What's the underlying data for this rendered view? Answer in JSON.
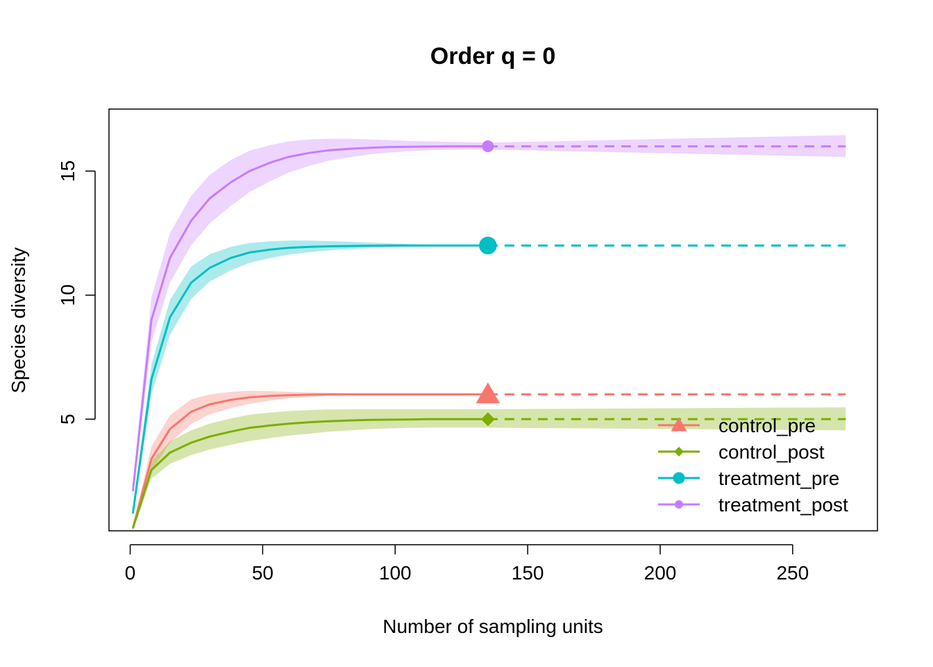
{
  "chart_data": {
    "type": "line",
    "title": "Order q = 0",
    "xlabel": "Number of sampling units",
    "ylabel": "Species diversity",
    "xlim": [
      -8,
      282
    ],
    "ylim": [
      0.5,
      17.5
    ],
    "xticks": [
      0,
      50,
      100,
      150,
      200,
      250
    ],
    "yticks": [
      5,
      10,
      15
    ],
    "grid": false,
    "legend_position": "bottom-right",
    "observed_x": 135,
    "extrapolation_end_x": 270,
    "series": [
      {
        "name": "control_pre",
        "color": "#F8766D",
        "band_color": "#F8766D",
        "marker": "triangle",
        "marker_size": "large",
        "legend_marker_size": "medium",
        "rarefaction": {
          "x": [
            1,
            8,
            15,
            23,
            30,
            38,
            45,
            53,
            60,
            68,
            75,
            83,
            90,
            98,
            105,
            113,
            120,
            128,
            135
          ],
          "y": [
            0.6,
            3.4,
            4.6,
            5.3,
            5.6,
            5.78,
            5.88,
            5.94,
            5.97,
            5.99,
            6.0,
            6.0,
            6.0,
            6.0,
            6.0,
            6.0,
            6.0,
            6.0,
            6.0
          ],
          "lower": [
            0.5,
            2.9,
            4.05,
            4.8,
            5.2,
            5.45,
            5.62,
            5.75,
            5.84,
            5.9,
            5.94,
            5.97,
            5.98,
            5.99,
            6.0,
            6.0,
            6.0,
            6.0,
            6.0
          ],
          "upper": [
            0.7,
            3.9,
            5.15,
            5.8,
            6.0,
            6.1,
            6.14,
            6.13,
            6.1,
            6.08,
            6.06,
            6.04,
            6.03,
            6.02,
            6.01,
            6.0,
            6.0,
            6.0,
            6.0
          ]
        },
        "extrapolation": {
          "x": [
            135,
            270
          ],
          "y": [
            6.0,
            6.0
          ],
          "lower": [
            6.0,
            6.0
          ],
          "upper": [
            6.0,
            6.0
          ]
        }
      },
      {
        "name": "control_post",
        "color": "#7CAE00",
        "band_color": "#7CAE00",
        "marker": "diamond",
        "marker_size": "medium",
        "legend_marker_size": "small",
        "rarefaction": {
          "x": [
            1,
            8,
            15,
            23,
            30,
            38,
            45,
            53,
            60,
            68,
            75,
            83,
            90,
            98,
            105,
            113,
            120,
            128,
            135
          ],
          "y": [
            0.6,
            2.95,
            3.65,
            4.05,
            4.3,
            4.5,
            4.65,
            4.75,
            4.82,
            4.88,
            4.92,
            4.95,
            4.97,
            4.98,
            4.99,
            5.0,
            5.0,
            5.0,
            5.0
          ],
          "lower": [
            0.5,
            2.6,
            3.2,
            3.55,
            3.78,
            3.97,
            4.12,
            4.24,
            4.34,
            4.42,
            4.5,
            4.55,
            4.6,
            4.63,
            4.65,
            4.66,
            4.66,
            4.66,
            4.66
          ],
          "upper": [
            0.7,
            3.3,
            4.1,
            4.55,
            4.82,
            5.03,
            5.18,
            5.27,
            5.33,
            5.37,
            5.39,
            5.4,
            5.4,
            5.4,
            5.4,
            5.4,
            5.4,
            5.4,
            5.4
          ]
        },
        "extrapolation": {
          "x": [
            135,
            270
          ],
          "y": [
            5.0,
            5.0
          ],
          "lower": [
            4.66,
            4.55
          ],
          "upper": [
            5.4,
            5.48
          ]
        }
      },
      {
        "name": "treatment_pre",
        "color": "#00BFC4",
        "band_color": "#00BFC4",
        "marker": "circle",
        "marker_size": "large",
        "legend_marker_size": "medium",
        "rarefaction": {
          "x": [
            1,
            8,
            15,
            23,
            30,
            38,
            45,
            53,
            60,
            68,
            75,
            83,
            90,
            98,
            105,
            113,
            120,
            128,
            135
          ],
          "y": [
            1.2,
            6.6,
            9.1,
            10.5,
            11.1,
            11.5,
            11.72,
            11.84,
            11.91,
            11.95,
            11.97,
            11.98,
            11.99,
            12.0,
            12.0,
            12.0,
            12.0,
            12.0,
            12.0
          ],
          "lower": [
            1.0,
            6.0,
            8.4,
            9.85,
            10.55,
            11.0,
            11.3,
            11.5,
            11.64,
            11.74,
            11.81,
            11.86,
            11.9,
            11.93,
            11.95,
            11.97,
            11.98,
            11.99,
            12.0
          ],
          "upper": [
            1.4,
            7.2,
            9.8,
            11.15,
            11.65,
            11.95,
            12.1,
            12.17,
            12.2,
            12.2,
            12.18,
            12.15,
            12.12,
            12.09,
            12.06,
            12.04,
            12.02,
            12.01,
            12.0
          ]
        },
        "extrapolation": {
          "x": [
            135,
            270
          ],
          "y": [
            12.0,
            12.0
          ],
          "lower": [
            12.0,
            12.0
          ],
          "upper": [
            12.0,
            12.0
          ]
        }
      },
      {
        "name": "treatment_post",
        "color": "#C77CFF",
        "band_color": "#C77CFF",
        "marker": "circle",
        "marker_size": "medium",
        "legend_marker_size": "small",
        "rarefaction": {
          "x": [
            1,
            8,
            15,
            23,
            30,
            38,
            45,
            53,
            60,
            68,
            75,
            83,
            90,
            98,
            105,
            113,
            120,
            128,
            135
          ],
          "y": [
            2.1,
            9.0,
            11.5,
            13.0,
            13.9,
            14.55,
            15.0,
            15.35,
            15.58,
            15.74,
            15.84,
            15.9,
            15.94,
            15.97,
            15.98,
            15.99,
            16.0,
            16.0,
            16.0
          ],
          "lower": [
            1.8,
            8.1,
            10.5,
            12.0,
            12.9,
            13.6,
            14.15,
            14.6,
            14.95,
            15.22,
            15.42,
            15.56,
            15.67,
            15.75,
            15.8,
            15.84,
            15.86,
            15.87,
            15.87
          ],
          "upper": [
            2.4,
            9.9,
            12.5,
            14.0,
            14.85,
            15.45,
            15.82,
            16.05,
            16.2,
            16.28,
            16.3,
            16.3,
            16.28,
            16.25,
            16.22,
            16.2,
            16.18,
            16.16,
            16.15
          ]
        },
        "extrapolation": {
          "x": [
            135,
            270
          ],
          "y": [
            16.0,
            16.0
          ],
          "lower": [
            15.87,
            15.57
          ],
          "upper": [
            16.15,
            16.45
          ]
        }
      }
    ]
  }
}
